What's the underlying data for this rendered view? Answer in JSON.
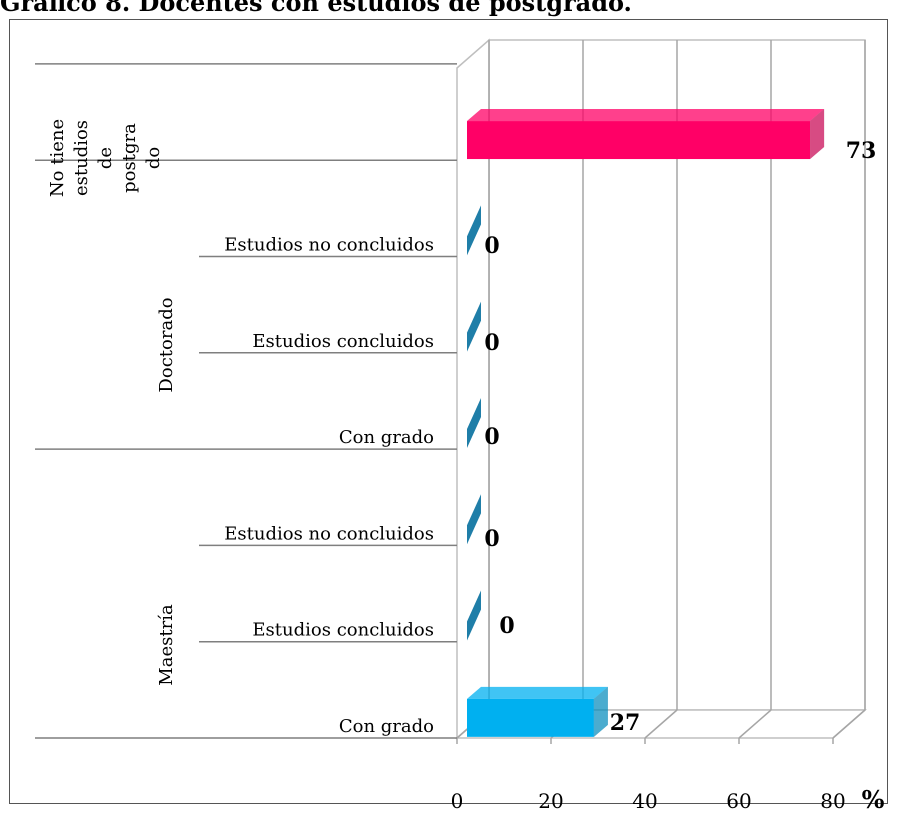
{
  "chart_data": {
    "type": "bar",
    "orientation": "horizontal",
    "style": "3d",
    "title": "Gráfico 8. Docentes con estudios de postgrado.",
    "unit": "%",
    "xlim": [
      0,
      80
    ],
    "x_ticks": [
      "0",
      "20",
      "40",
      "60",
      "80"
    ],
    "grid": true,
    "groups": [
      {
        "name": "Maestría",
        "categories": [
          "Con grado",
          "Estudios concluidos",
          "Estudios no concluidos"
        ]
      },
      {
        "name": "Doctorado",
        "categories": [
          "Con grado",
          "Estudios concluidos",
          "Estudios no concluidos"
        ]
      },
      {
        "name": "No tiene estudios de postgrado",
        "label_lines": [
          "No tiene",
          "estudios",
          "de",
          "postgra",
          "do"
        ],
        "categories": []
      }
    ],
    "bars": [
      {
        "group": "Maestría",
        "category": "Con grado",
        "value": 27,
        "label": "27",
        "color": "#00b0f0"
      },
      {
        "group": "Maestría",
        "category": "Estudios concluidos",
        "value": 0,
        "label": "0",
        "color": "#1f7ea8"
      },
      {
        "group": "Maestría",
        "category": "Estudios no concluidos",
        "value": 0,
        "label": "0",
        "color": "#1f7ea8"
      },
      {
        "group": "Doctorado",
        "category": "Con grado",
        "value": 0,
        "label": "0",
        "color": "#1f7ea8"
      },
      {
        "group": "Doctorado",
        "category": "Estudios concluidos",
        "value": 0,
        "label": "0",
        "color": "#1f7ea8"
      },
      {
        "group": "Doctorado",
        "category": "Estudios no concluidos",
        "value": 0,
        "label": "0",
        "color": "#1f7ea8"
      },
      {
        "group": "No tiene estudios de postgrado",
        "category": "",
        "value": 73,
        "label": "73",
        "color": "#ff0066"
      }
    ]
  }
}
